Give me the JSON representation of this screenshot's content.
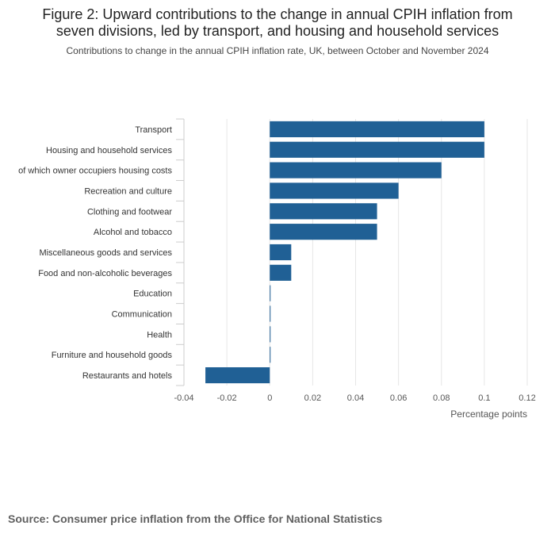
{
  "title_line1": "Figure 2: Upward contributions to the change in annual CPIH inflation from",
  "title_line2": "seven divisions, led by transport, and housing and household services",
  "subtitle": "Contributions to change in the annual CPIH inflation rate, UK, between October and November 2024",
  "source": "Source: Consumer price inflation from the Office for National Statistics",
  "colors": {
    "bar": "#206095",
    "grid": "#e6e6e6",
    "axis": "#cccccc"
  },
  "chart_data": {
    "type": "bar",
    "orientation": "horizontal",
    "categories": [
      "Transport",
      "Housing and household services",
      "of which owner occupiers housing costs",
      "Recreation and culture",
      "Clothing and footwear",
      "Alcohol and tobacco",
      "Miscellaneous goods and services",
      "Food and non-alcoholic beverages",
      "Education",
      "Communication",
      "Health",
      "Furniture and household goods",
      "Restaurants and hotels"
    ],
    "values": [
      0.1,
      0.1,
      0.08,
      0.06,
      0.05,
      0.05,
      0.01,
      0.01,
      0,
      0,
      0,
      0,
      -0.03
    ],
    "xlabel": "Percentage points",
    "ylabel": "",
    "xlim": [
      -0.04,
      0.12
    ],
    "xticks": [
      -0.04,
      -0.02,
      0,
      0.02,
      0.04,
      0.06,
      0.08,
      0.1,
      0.12
    ],
    "xtick_labels": [
      "-0.04",
      "-0.02",
      "0",
      "0.02",
      "0.04",
      "0.06",
      "0.08",
      "0.1",
      "0.12"
    ],
    "grid": true,
    "legend": false
  }
}
